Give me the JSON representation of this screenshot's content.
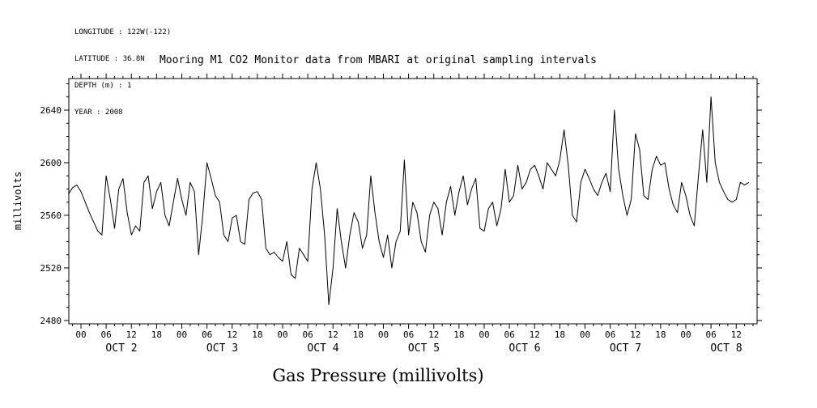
{
  "meta": {
    "longitude": "LONGITUDE : 122W(-122)",
    "latitude": "LATITUDE : 36.8N",
    "depth": "DEPTH (m) : 1",
    "year": "YEAR : 2008"
  },
  "chart_data": {
    "type": "line",
    "title": "Mooring M1 CO2 Monitor data from MBARI at original sampling intervals",
    "xlabel": "Gas Pressure (millivolts)",
    "ylabel": "millivolts",
    "ylim": [
      2477.5,
      2664
    ],
    "yticks": [
      2480,
      2520,
      2560,
      2600,
      2640
    ],
    "y_minor_step": 10,
    "x_start": "OCT 1 21:00 2008",
    "x_step_hours": 1,
    "hour_tick_labels": [
      "00",
      "06",
      "12",
      "18"
    ],
    "day_labels": [
      "OCT 2",
      "OCT 3",
      "OCT 4",
      "OCT 5",
      "OCT 6",
      "OCT 7",
      "OCT 8"
    ],
    "line_color": "#000000",
    "grid": false,
    "legend": "none",
    "values": [
      2576,
      2581,
      2583,
      2578,
      2570,
      2562,
      2555,
      2548,
      2545,
      2590,
      2572,
      2550,
      2580,
      2588,
      2562,
      2545,
      2552,
      2548,
      2585,
      2590,
      2565,
      2578,
      2585,
      2560,
      2552,
      2570,
      2588,
      2572,
      2560,
      2585,
      2578,
      2530,
      2560,
      2600,
      2588,
      2575,
      2570,
      2545,
      2540,
      2558,
      2560,
      2540,
      2538,
      2572,
      2577,
      2578,
      2572,
      2535,
      2530,
      2532,
      2528,
      2525,
      2540,
      2515,
      2512,
      2535,
      2530,
      2525,
      2580,
      2600,
      2580,
      2545,
      2492,
      2520,
      2565,
      2540,
      2520,
      2545,
      2562,
      2555,
      2535,
      2545,
      2590,
      2562,
      2540,
      2528,
      2545,
      2520,
      2540,
      2548,
      2602,
      2545,
      2570,
      2562,
      2540,
      2532,
      2560,
      2570,
      2565,
      2545,
      2570,
      2582,
      2560,
      2578,
      2590,
      2568,
      2580,
      2588,
      2550,
      2548,
      2565,
      2570,
      2552,
      2565,
      2595,
      2570,
      2575,
      2598,
      2580,
      2585,
      2595,
      2598,
      2590,
      2580,
      2600,
      2595,
      2590,
      2602,
      2625,
      2598,
      2560,
      2555,
      2585,
      2595,
      2588,
      2580,
      2575,
      2585,
      2592,
      2578,
      2640,
      2595,
      2575,
      2560,
      2572,
      2622,
      2610,
      2575,
      2572,
      2595,
      2605,
      2598,
      2600,
      2580,
      2568,
      2562,
      2585,
      2575,
      2560,
      2552,
      2590,
      2625,
      2585,
      2650,
      2600,
      2585,
      2578,
      2572,
      2570,
      2572,
      2585,
      2583,
      2585
    ]
  }
}
